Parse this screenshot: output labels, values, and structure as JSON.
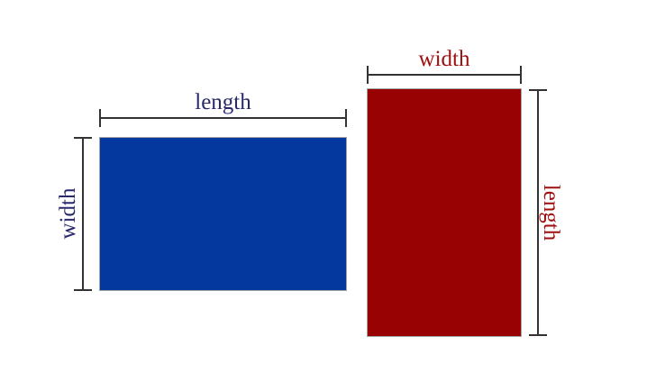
{
  "diagram": {
    "description": "Two congruent rectangles shown in different orientations with length and width dimension labels",
    "background_color": "#ffffff",
    "dimension_line_color": "#333333",
    "shapes": [
      {
        "id": "blue-rectangle",
        "orientation": "landscape",
        "fill_color": "#05389e",
        "label_color": "#28286e",
        "top_label": "length",
        "side_label": "width",
        "side_label_position": "left",
        "side_label_reading_direction": "bottom-to-top"
      },
      {
        "id": "red-rectangle",
        "orientation": "portrait",
        "fill_color": "#990202",
        "label_color": "#9e0e0e",
        "top_label": "width",
        "side_label": "length",
        "side_label_position": "right",
        "side_label_reading_direction": "top-to-bottom"
      }
    ]
  }
}
